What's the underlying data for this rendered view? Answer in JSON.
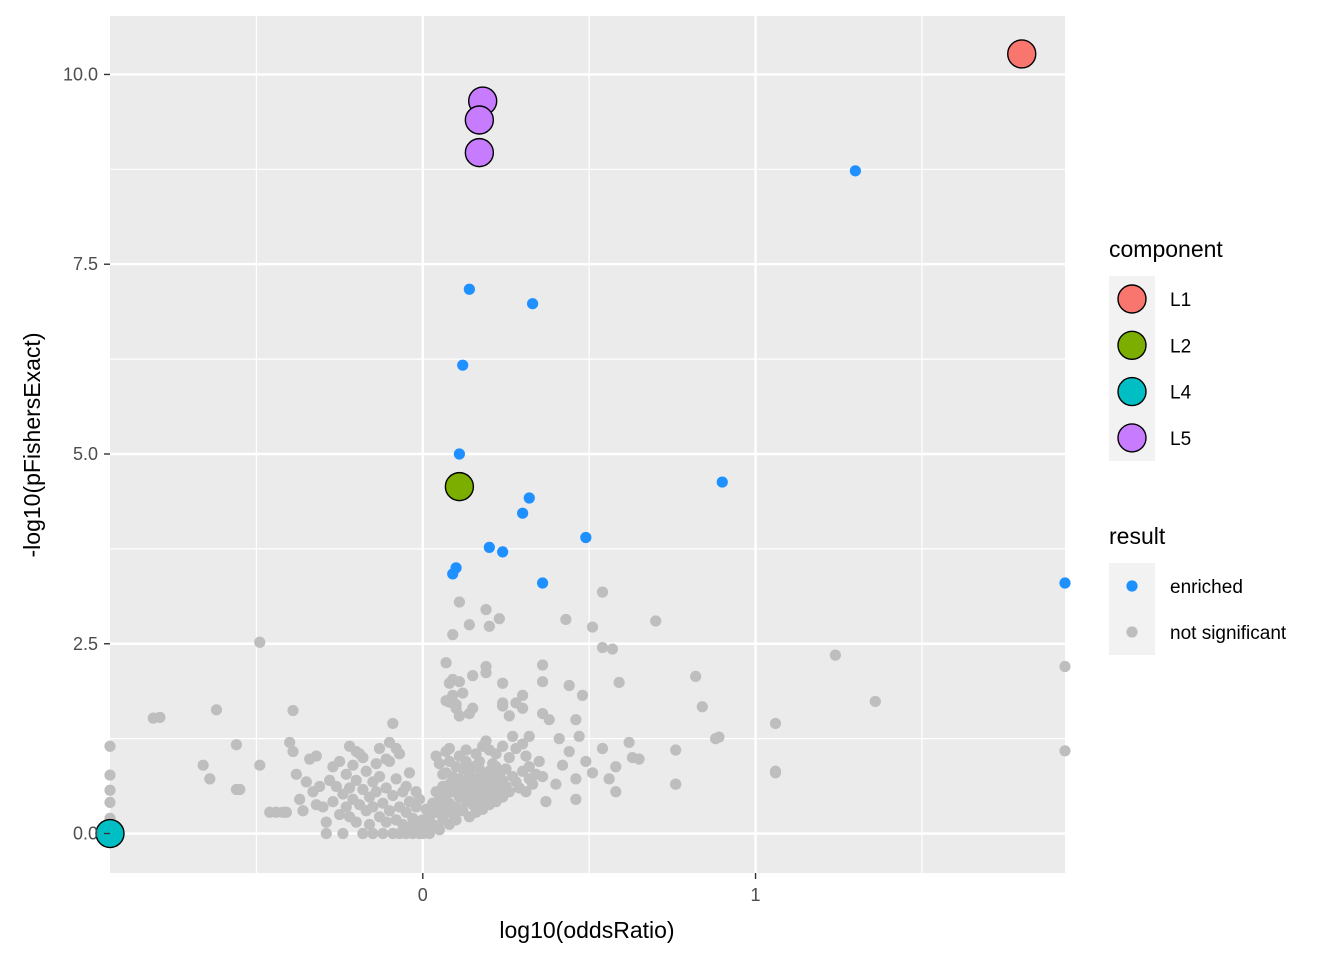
{
  "chart_data": {
    "type": "scatter",
    "xlabel": "log10(oddsRatio)",
    "ylabel": "-log10(pFishersExact)",
    "xlim": [
      -0.94,
      1.93
    ],
    "ylim": [
      -0.52,
      10.77
    ],
    "x_ticks": [
      0,
      1
    ],
    "x_tick_labels": [
      "0",
      "1"
    ],
    "x_minor_ticks": [
      -0.5,
      0.5,
      1.5
    ],
    "y_ticks": [
      0,
      2.5,
      5,
      7.5,
      10
    ],
    "y_tick_labels": [
      "0.0",
      "2.5",
      "5.0",
      "7.5",
      "10.0"
    ],
    "y_minor_ticks": [
      1.25,
      3.75,
      6.25,
      8.75
    ],
    "grid": true,
    "colors": {
      "panel": "#EBEBEB",
      "grid": "#FFFFFF",
      "enriched": "#1E90FF",
      "not_significant": "#BEBEBE",
      "L1": "#F8766D",
      "L2": "#7CAE00",
      "L4": "#00BFC4",
      "L5": "#C77CFF"
    },
    "legend_position": "right",
    "legends": [
      {
        "title": "component",
        "entries": [
          "L1",
          "L2",
          "L4",
          "L5"
        ]
      },
      {
        "title": "result",
        "entries": [
          "enriched",
          "not significant"
        ]
      }
    ],
    "series": [
      {
        "name": "not significant",
        "result": "not significant",
        "points": [
          [
            -0.94,
            1.15
          ],
          [
            -0.94,
            0.77
          ],
          [
            -0.94,
            0.57
          ],
          [
            -0.94,
            0.41
          ],
          [
            -0.94,
            0.2
          ],
          [
            -0.81,
            1.52
          ],
          [
            -0.79,
            1.53
          ],
          [
            -0.66,
            0.9
          ],
          [
            -0.64,
            0.72
          ],
          [
            -0.62,
            1.63
          ],
          [
            -0.56,
            1.17
          ],
          [
            -0.56,
            0.58
          ],
          [
            -0.55,
            0.58
          ],
          [
            -0.49,
            2.52
          ],
          [
            -0.49,
            0.9
          ],
          [
            -0.46,
            0.28
          ],
          [
            -0.44,
            0.28
          ],
          [
            -0.42,
            0.28
          ],
          [
            -0.41,
            0.28
          ],
          [
            -0.4,
            1.2
          ],
          [
            -0.39,
            1.62
          ],
          [
            -0.39,
            1.08
          ],
          [
            -0.38,
            0.78
          ],
          [
            -0.37,
            0.45
          ],
          [
            -0.36,
            0.3
          ],
          [
            -0.35,
            0.68
          ],
          [
            -0.34,
            0.98
          ],
          [
            -0.33,
            0.55
          ],
          [
            -0.32,
            1.02
          ],
          [
            -0.32,
            0.38
          ],
          [
            -0.31,
            0.62
          ],
          [
            -0.3,
            0.35
          ],
          [
            -0.29,
            0.15
          ],
          [
            -0.29,
            0.0
          ],
          [
            -0.28,
            0.7
          ],
          [
            -0.27,
            0.42
          ],
          [
            -0.27,
            0.88
          ],
          [
            -0.26,
            0.62
          ],
          [
            -0.25,
            0.95
          ],
          [
            -0.25,
            0.25
          ],
          [
            -0.24,
            0.52
          ],
          [
            -0.24,
            0.0
          ],
          [
            -0.23,
            0.78
          ],
          [
            -0.23,
            0.35
          ],
          [
            -0.22,
            0.22
          ],
          [
            -0.22,
            0.6
          ],
          [
            -0.21,
            0.9
          ],
          [
            -0.21,
            0.45
          ],
          [
            -0.2,
            0.7
          ],
          [
            -0.2,
            0.15
          ],
          [
            -0.19,
            0.38
          ],
          [
            -0.19,
            1.05
          ],
          [
            -0.18,
            0.58
          ],
          [
            -0.18,
            0.0
          ],
          [
            -0.17,
            0.82
          ],
          [
            -0.17,
            0.3
          ],
          [
            -0.16,
            0.48
          ],
          [
            -0.16,
            0.12
          ],
          [
            -0.15,
            0.68
          ],
          [
            -0.15,
            0.35
          ],
          [
            -0.15,
            0.0
          ],
          [
            -0.14,
            0.92
          ],
          [
            -0.14,
            0.55
          ],
          [
            -0.13,
            0.22
          ],
          [
            -0.13,
            0.75
          ],
          [
            -0.12,
            0.4
          ],
          [
            -0.12,
            0.0
          ],
          [
            -0.11,
            0.6
          ],
          [
            -0.11,
            0.15
          ],
          [
            -0.1,
            0.95
          ],
          [
            -0.1,
            0.3
          ],
          [
            -0.09,
            0.5
          ],
          [
            -0.09,
            0.0
          ],
          [
            -0.08,
            0.18
          ],
          [
            -0.08,
            0.72
          ],
          [
            -0.07,
            0.35
          ],
          [
            -0.07,
            0.0
          ],
          [
            -0.06,
            0.55
          ],
          [
            -0.06,
            0.12
          ],
          [
            -0.05,
            0.28
          ],
          [
            -0.05,
            0.0
          ],
          [
            -0.04,
            0.42
          ],
          [
            -0.04,
            0.08
          ],
          [
            -0.03,
            0.2
          ],
          [
            -0.03,
            0.0
          ],
          [
            -0.02,
            0.35
          ],
          [
            -0.02,
            0.05
          ],
          [
            -0.01,
            0.15
          ],
          [
            -0.01,
            0.0
          ],
          [
            -0.22,
            1.15
          ],
          [
            -0.2,
            1.08
          ],
          [
            -0.18,
            1.0
          ],
          [
            -0.13,
            1.12
          ],
          [
            -0.11,
            0.98
          ],
          [
            -0.1,
            1.2
          ],
          [
            -0.09,
            1.45
          ],
          [
            -0.08,
            1.12
          ],
          [
            -0.07,
            1.05
          ],
          [
            -0.05,
            0.62
          ],
          [
            -0.04,
            0.8
          ],
          [
            -0.02,
            0.55
          ],
          [
            -0.01,
            0.45
          ],
          [
            0.0,
            0.0
          ],
          [
            0.0,
            0.18
          ],
          [
            0.01,
            0.32
          ],
          [
            0.01,
            0.08
          ],
          [
            0.02,
            0.22
          ],
          [
            0.02,
            0.0
          ],
          [
            0.03,
            0.4
          ],
          [
            0.03,
            0.12
          ],
          [
            0.04,
            0.28
          ],
          [
            0.04,
            0.55
          ],
          [
            0.05,
            0.05
          ],
          [
            0.05,
            0.45
          ],
          [
            0.06,
            0.18
          ],
          [
            0.06,
            0.62
          ],
          [
            0.06,
            0.35
          ],
          [
            0.07,
            0.28
          ],
          [
            0.07,
            0.8
          ],
          [
            0.07,
            0.5
          ],
          [
            0.08,
            0.12
          ],
          [
            0.08,
            0.65
          ],
          [
            0.08,
            0.4
          ],
          [
            0.08,
            0.95
          ],
          [
            0.09,
            0.25
          ],
          [
            0.09,
            0.55
          ],
          [
            0.09,
            0.75
          ],
          [
            0.1,
            0.35
          ],
          [
            0.1,
            0.88
          ],
          [
            0.1,
            0.62
          ],
          [
            0.1,
            0.18
          ],
          [
            0.11,
            0.48
          ],
          [
            0.11,
            0.72
          ],
          [
            0.11,
            1.02
          ],
          [
            0.12,
            0.3
          ],
          [
            0.12,
            0.58
          ],
          [
            0.12,
            0.85
          ],
          [
            0.13,
            0.42
          ],
          [
            0.13,
            0.68
          ],
          [
            0.13,
            0.95
          ],
          [
            0.14,
            0.22
          ],
          [
            0.14,
            0.52
          ],
          [
            0.14,
            0.78
          ],
          [
            0.15,
            0.38
          ],
          [
            0.15,
            0.62
          ],
          [
            0.15,
            0.88
          ],
          [
            0.16,
            0.28
          ],
          [
            0.16,
            0.5
          ],
          [
            0.16,
            0.72
          ],
          [
            0.17,
            0.42
          ],
          [
            0.17,
            0.65
          ],
          [
            0.17,
            0.85
          ],
          [
            0.18,
            0.32
          ],
          [
            0.18,
            0.55
          ],
          [
            0.18,
            0.78
          ],
          [
            0.19,
            0.45
          ],
          [
            0.19,
            0.68
          ],
          [
            0.2,
            0.38
          ],
          [
            0.2,
            0.6
          ],
          [
            0.2,
            0.82
          ],
          [
            0.21,
            0.5
          ],
          [
            0.21,
            0.72
          ],
          [
            0.22,
            0.42
          ],
          [
            0.22,
            0.65
          ],
          [
            0.22,
            0.88
          ],
          [
            0.23,
            0.55
          ],
          [
            0.23,
            0.78
          ],
          [
            0.24,
            0.48
          ],
          [
            0.24,
            0.7
          ],
          [
            0.25,
            0.62
          ],
          [
            0.25,
            0.85
          ],
          [
            0.26,
            0.55
          ],
          [
            0.27,
            0.75
          ],
          [
            0.28,
            0.68
          ],
          [
            0.29,
            0.6
          ],
          [
            0.3,
            0.82
          ],
          [
            0.31,
            0.55
          ],
          [
            0.32,
            0.72
          ],
          [
            0.33,
            0.65
          ],
          [
            0.04,
            1.02
          ],
          [
            0.05,
            0.92
          ],
          [
            0.06,
            0.78
          ],
          [
            0.07,
            1.08
          ],
          [
            0.08,
            1.12
          ],
          [
            0.09,
            2.03
          ],
          [
            0.1,
            1.65
          ],
          [
            0.11,
            1.55
          ],
          [
            0.12,
            1.85
          ],
          [
            0.13,
            1.1
          ],
          [
            0.14,
            1.58
          ],
          [
            0.15,
            1.65
          ],
          [
            0.16,
            1.05
          ],
          [
            0.17,
            0.95
          ],
          [
            0.18,
            1.15
          ],
          [
            0.19,
            1.22
          ],
          [
            0.2,
            1.1
          ],
          [
            0.21,
            0.92
          ],
          [
            0.22,
            1.05
          ],
          [
            0.24,
            1.15
          ],
          [
            0.26,
            1.0
          ],
          [
            0.27,
            1.28
          ],
          [
            0.28,
            1.12
          ],
          [
            0.3,
            1.18
          ],
          [
            0.31,
            1.02
          ],
          [
            0.32,
            0.88
          ],
          [
            0.34,
            0.78
          ],
          [
            0.35,
            0.95
          ],
          [
            0.36,
            0.75
          ],
          [
            0.07,
            2.25
          ],
          [
            0.07,
            1.75
          ],
          [
            0.08,
            1.73
          ],
          [
            0.08,
            1.98
          ],
          [
            0.09,
            1.82
          ],
          [
            0.1,
            1.7
          ],
          [
            0.11,
            1.55
          ],
          [
            0.11,
            2.0
          ],
          [
            0.14,
            2.75
          ],
          [
            0.15,
            2.08
          ],
          [
            0.19,
            2.95
          ],
          [
            0.19,
            2.2
          ],
          [
            0.19,
            2.12
          ],
          [
            0.2,
            2.73
          ],
          [
            0.23,
            2.83
          ],
          [
            0.24,
            1.98
          ],
          [
            0.24,
            1.72
          ],
          [
            0.24,
            1.68
          ],
          [
            0.26,
            1.55
          ],
          [
            0.28,
            1.72
          ],
          [
            0.3,
            1.82
          ],
          [
            0.3,
            1.65
          ],
          [
            0.32,
            1.28
          ],
          [
            0.36,
            2.22
          ],
          [
            0.36,
            2.0
          ],
          [
            0.36,
            1.58
          ],
          [
            0.38,
            1.5
          ],
          [
            0.41,
            1.25
          ],
          [
            0.44,
            1.95
          ],
          [
            0.46,
            1.5
          ],
          [
            0.47,
            1.28
          ],
          [
            0.48,
            1.82
          ],
          [
            0.09,
            2.62
          ],
          [
            0.11,
            3.05
          ],
          [
            0.43,
            2.82
          ],
          [
            0.51,
            2.72
          ],
          [
            0.54,
            2.45
          ],
          [
            0.54,
            3.18
          ],
          [
            0.57,
            2.43
          ],
          [
            0.59,
            1.99
          ],
          [
            0.62,
            1.2
          ],
          [
            0.7,
            2.8
          ],
          [
            0.82,
            2.07
          ],
          [
            0.84,
            1.67
          ],
          [
            0.88,
            1.25
          ],
          [
            0.89,
            1.27
          ],
          [
            1.06,
            1.45
          ],
          [
            1.24,
            2.35
          ],
          [
            1.36,
            1.74
          ],
          [
            1.93,
            2.2
          ],
          [
            1.93,
            1.09
          ],
          [
            0.37,
            0.42
          ],
          [
            0.4,
            0.65
          ],
          [
            0.42,
            0.9
          ],
          [
            0.44,
            1.08
          ],
          [
            0.46,
            0.72
          ],
          [
            0.46,
            0.45
          ],
          [
            0.49,
            0.95
          ],
          [
            0.51,
            0.8
          ],
          [
            0.54,
            1.12
          ],
          [
            0.56,
            0.72
          ],
          [
            0.58,
            0.55
          ],
          [
            0.58,
            0.88
          ],
          [
            0.63,
            1.0
          ],
          [
            0.65,
            0.98
          ],
          [
            0.76,
            0.65
          ],
          [
            0.76,
            1.1
          ],
          [
            0.76,
            0.65
          ],
          [
            1.06,
            0.8
          ],
          [
            1.06,
            0.82
          ]
        ]
      },
      {
        "name": "enriched",
        "result": "enriched",
        "points": [
          [
            1.3,
            8.73
          ],
          [
            0.14,
            7.17
          ],
          [
            0.33,
            6.98
          ],
          [
            0.12,
            6.17
          ],
          [
            0.11,
            5.0
          ],
          [
            0.9,
            4.63
          ],
          [
            0.32,
            4.42
          ],
          [
            0.3,
            4.22
          ],
          [
            0.49,
            3.9
          ],
          [
            0.2,
            3.77
          ],
          [
            0.24,
            3.71
          ],
          [
            0.1,
            3.5
          ],
          [
            0.09,
            3.42
          ],
          [
            0.36,
            3.3
          ],
          [
            1.93,
            3.3
          ]
        ]
      },
      {
        "name": "component",
        "result": "enriched",
        "points": [
          {
            "x": 1.8,
            "y": 10.27,
            "component": "L1"
          },
          {
            "x": 0.18,
            "y": 9.65,
            "component": "L5"
          },
          {
            "x": 0.17,
            "y": 9.4,
            "component": "L5"
          },
          {
            "x": 0.17,
            "y": 8.97,
            "component": "L5"
          },
          {
            "x": 0.11,
            "y": 4.57,
            "component": "L2"
          },
          {
            "x": -0.94,
            "y": 0.0,
            "component": "L4"
          }
        ]
      }
    ]
  }
}
